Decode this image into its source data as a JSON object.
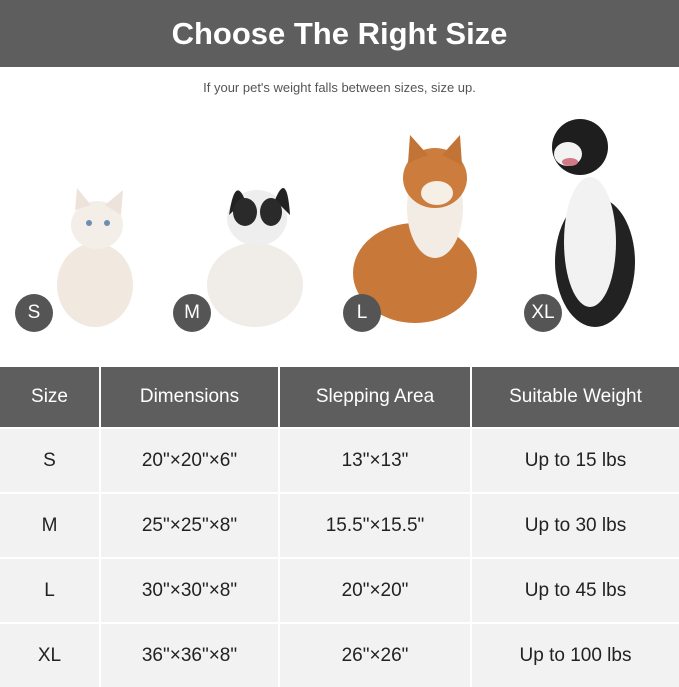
{
  "title": "Choose The Right Size",
  "subtitle": "If your pet's weight falls between sizes, size up.",
  "pets": [
    {
      "badge": "S",
      "animal": "cat"
    },
    {
      "badge": "M",
      "animal": "french-bulldog"
    },
    {
      "badge": "L",
      "animal": "shiba-inu"
    },
    {
      "badge": "XL",
      "animal": "border-collie"
    }
  ],
  "table": {
    "headers": [
      "Size",
      "Dimensions",
      "Slepping Area",
      "Suitable Weight"
    ],
    "rows": [
      [
        "S",
        "20\"×20\"×6\"",
        "13\"×13\"",
        "Up to 15 lbs"
      ],
      [
        "M",
        "25\"×25\"×8\"",
        "15.5\"×15.5\"",
        "Up to 30 lbs"
      ],
      [
        "L",
        "30\"×30\"×8\"",
        "20\"×20\"",
        "Up to 45 lbs"
      ],
      [
        "XL",
        "36\"×36\"×8\"",
        "26\"×26\"",
        "Up to 100 lbs"
      ]
    ]
  },
  "colors": {
    "banner": "#5e5e5e",
    "row": "#f2f2f2"
  }
}
